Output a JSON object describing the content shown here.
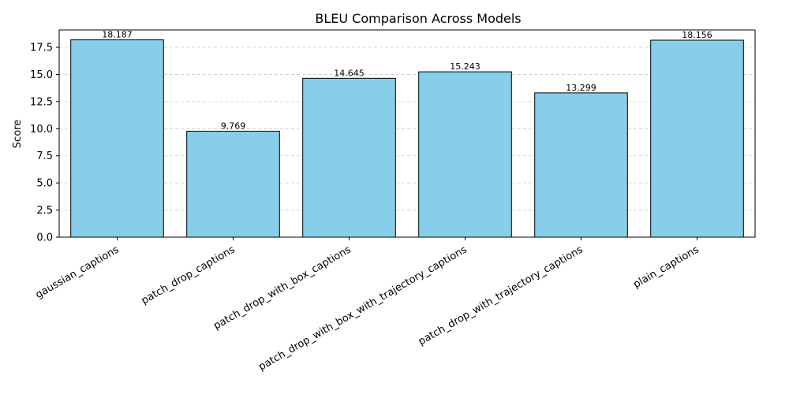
{
  "chart_data": {
    "type": "bar",
    "title": "BLEU Comparison Across Models",
    "ylabel": "Score",
    "xlabel": "",
    "categories": [
      "gaussian_captions",
      "patch_drop_captions",
      "patch_drop_with_box_captions",
      "patch_drop_with_box_with_trajectory_captions",
      "patch_drop_with_trajectory_captions",
      "plain_captions"
    ],
    "values": [
      18.187,
      9.769,
      14.645,
      15.243,
      13.299,
      18.156
    ],
    "data_labels": [
      "18.187",
      "9.769",
      "14.645",
      "15.243",
      "13.299",
      "18.156"
    ],
    "ylim": [
      0,
      19.1
    ],
    "yticks": [
      0.0,
      2.5,
      5.0,
      7.5,
      10.0,
      12.5,
      15.0,
      17.5
    ],
    "ytick_labels": [
      "0.0",
      "2.5",
      "5.0",
      "7.5",
      "10.0",
      "12.5",
      "15.0",
      "17.5"
    ],
    "grid": "y-dashed",
    "bar_color": "#87CEEB",
    "bar_edge_color": "#000000",
    "grid_color": "#cccccc"
  }
}
